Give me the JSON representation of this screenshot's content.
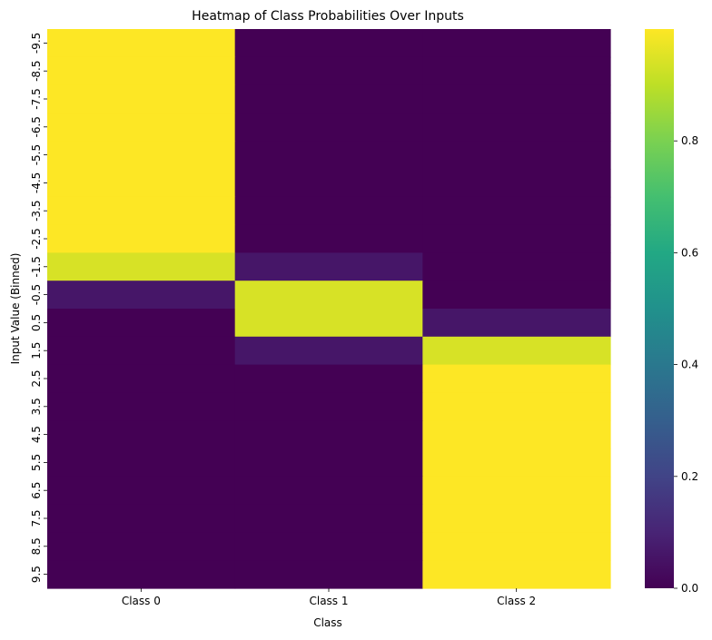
{
  "chart_data": {
    "type": "heatmap",
    "title": "Heatmap of Class Probabilities Over Inputs",
    "xlabel": "Class",
    "ylabel": "Input Value (Binned)",
    "x_categories": [
      "Class 0",
      "Class 1",
      "Class 2"
    ],
    "y_categories": [
      "-9.5",
      "-8.5",
      "-7.5",
      "-6.5",
      "-5.5",
      "-4.5",
      "-3.5",
      "-2.5",
      "-1.5",
      "-0.5",
      "0.5",
      "1.5",
      "2.5",
      "3.5",
      "4.5",
      "5.5",
      "6.5",
      "7.5",
      "8.5",
      "9.5"
    ],
    "values": [
      [
        1.0,
        0.0,
        0.0
      ],
      [
        1.0,
        0.0,
        0.0
      ],
      [
        1.0,
        0.0,
        0.0
      ],
      [
        1.0,
        0.0,
        0.0
      ],
      [
        1.0,
        0.0,
        0.0
      ],
      [
        1.0,
        0.0,
        0.0
      ],
      [
        1.0,
        0.0,
        0.0
      ],
      [
        1.0,
        0.0,
        0.0
      ],
      [
        0.94,
        0.06,
        0.0
      ],
      [
        0.06,
        0.94,
        0.0
      ],
      [
        0.0,
        0.94,
        0.06
      ],
      [
        0.0,
        0.06,
        0.94
      ],
      [
        0.0,
        0.0,
        1.0
      ],
      [
        0.0,
        0.0,
        1.0
      ],
      [
        0.0,
        0.0,
        1.0
      ],
      [
        0.0,
        0.0,
        1.0
      ],
      [
        0.0,
        0.0,
        1.0
      ],
      [
        0.0,
        0.0,
        1.0
      ],
      [
        0.0,
        0.0,
        1.0
      ],
      [
        0.0,
        0.0,
        1.0
      ]
    ],
    "colormap": "viridis",
    "vmin": 0.0,
    "vmax": 1.0,
    "colorbar_ticks": [
      "0.0",
      "0.2",
      "0.4",
      "0.6",
      "0.8"
    ],
    "colorbar_tick_values": [
      0.0,
      0.2,
      0.4,
      0.6,
      0.8
    ],
    "grid": false,
    "legend": "colorbar-right"
  }
}
